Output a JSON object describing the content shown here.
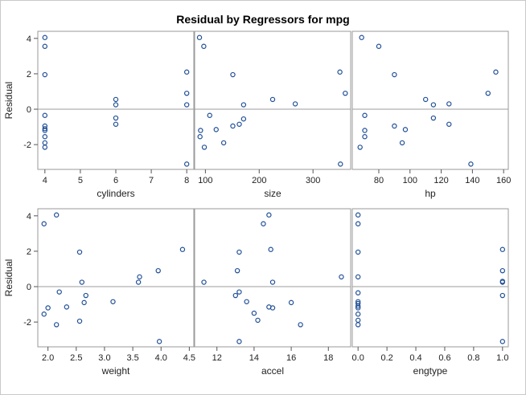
{
  "chart_data": {
    "type": "scatter",
    "title": "Residual by Regressors for mpg",
    "ylabel": "Residual",
    "y_ticks": [
      -2,
      0,
      2,
      4
    ],
    "ylim": [
      -3.4,
      4.4
    ],
    "reference_line_y": 0,
    "point_color": "#1f4e96",
    "panels": [
      {
        "xlabel": "cylinders",
        "xlim": [
          3.8,
          8.2
        ],
        "x_ticks": [
          4,
          5,
          6,
          7,
          8
        ],
        "points": [
          [
            4,
            4.05
          ],
          [
            4,
            3.55
          ],
          [
            4,
            1.95
          ],
          [
            4,
            -0.35
          ],
          [
            4,
            -0.95
          ],
          [
            4,
            -1.1
          ],
          [
            4,
            -1.2
          ],
          [
            4,
            -1.55
          ],
          [
            4,
            -1.9
          ],
          [
            4,
            -2.15
          ],
          [
            6,
            0.55
          ],
          [
            6,
            0.25
          ],
          [
            6,
            -0.5
          ],
          [
            6,
            -0.85
          ],
          [
            8,
            2.1
          ],
          [
            8,
            0.9
          ],
          [
            8,
            0.25
          ],
          [
            8,
            -3.1
          ]
        ]
      },
      {
        "xlabel": "size",
        "xlim": [
          80,
          370
        ],
        "x_ticks": [
          100,
          200,
          300
        ],
        "points": [
          [
            89,
            4.05
          ],
          [
            97,
            3.55
          ],
          [
            91,
            -1.2
          ],
          [
            90,
            -1.55
          ],
          [
            98,
            -2.15
          ],
          [
            108,
            -0.35
          ],
          [
            120,
            -1.15
          ],
          [
            134,
            -1.9
          ],
          [
            151,
            1.95
          ],
          [
            151,
            -0.95
          ],
          [
            163,
            -0.85
          ],
          [
            171,
            0.25
          ],
          [
            171,
            -0.55
          ],
          [
            225,
            0.55
          ],
          [
            267,
            0.3
          ],
          [
            350,
            2.1
          ],
          [
            360,
            0.9
          ],
          [
            351,
            -3.1
          ]
        ]
      },
      {
        "xlabel": "hp",
        "xlim": [
          63,
          163
        ],
        "x_ticks": [
          80,
          100,
          120,
          140,
          160
        ],
        "points": [
          [
            69,
            4.05
          ],
          [
            80,
            3.55
          ],
          [
            90,
            1.95
          ],
          [
            71,
            -0.35
          ],
          [
            71,
            -1.2
          ],
          [
            71,
            -1.55
          ],
          [
            68,
            -2.15
          ],
          [
            90,
            -0.95
          ],
          [
            97,
            -1.15
          ],
          [
            95,
            -1.9
          ],
          [
            110,
            0.55
          ],
          [
            115,
            0.25
          ],
          [
            115,
            -0.5
          ],
          [
            125,
            0.3
          ],
          [
            125,
            -0.85
          ],
          [
            155,
            2.1
          ],
          [
            150,
            0.9
          ],
          [
            139,
            -3.1
          ]
        ]
      },
      {
        "xlabel": "weight",
        "xlim": [
          1.82,
          4.58
        ],
        "x_ticks": [
          2.0,
          2.5,
          3.0,
          3.5,
          4.0,
          4.5
        ],
        "x_tick_labels": [
          "2.0",
          "2.5",
          "3.0",
          "3.5",
          "4.0",
          "4.5"
        ],
        "points": [
          [
            1.93,
            3.55
          ],
          [
            2.15,
            4.05
          ],
          [
            2.2,
            -0.3
          ],
          [
            1.93,
            -1.55
          ],
          [
            2.0,
            -1.2
          ],
          [
            2.15,
            -2.15
          ],
          [
            2.33,
            -1.15
          ],
          [
            2.56,
            1.95
          ],
          [
            2.56,
            -1.95
          ],
          [
            2.6,
            0.25
          ],
          [
            2.67,
            -0.5
          ],
          [
            2.64,
            -0.9
          ],
          [
            3.15,
            -0.85
          ],
          [
            3.62,
            0.55
          ],
          [
            3.6,
            0.25
          ],
          [
            3.95,
            0.9
          ],
          [
            4.38,
            2.1
          ],
          [
            3.97,
            -3.1
          ]
        ]
      },
      {
        "xlabel": "accel",
        "xlim": [
          10.8,
          19.2
        ],
        "x_ticks": [
          12,
          14,
          16,
          18
        ],
        "points": [
          [
            11.3,
            0.25
          ],
          [
            13.0,
            -0.5
          ],
          [
            13.1,
            0.9
          ],
          [
            13.2,
            1.95
          ],
          [
            13.2,
            -0.3
          ],
          [
            13.2,
            -3.1
          ],
          [
            13.6,
            -0.85
          ],
          [
            14.0,
            -1.5
          ],
          [
            14.2,
            -1.9
          ],
          [
            14.5,
            3.55
          ],
          [
            14.8,
            4.05
          ],
          [
            14.8,
            -1.15
          ],
          [
            15.0,
            -1.2
          ],
          [
            14.9,
            2.1
          ],
          [
            15.0,
            0.25
          ],
          [
            16.0,
            -0.9
          ],
          [
            16.5,
            -2.15
          ],
          [
            18.7,
            0.55
          ]
        ]
      },
      {
        "xlabel": "engtype",
        "xlim": [
          -0.04,
          1.04
        ],
        "x_ticks": [
          0.0,
          0.2,
          0.4,
          0.6,
          0.8,
          1.0
        ],
        "x_tick_labels": [
          "0.0",
          "0.2",
          "0.4",
          "0.6",
          "0.8",
          "1.0"
        ],
        "points": [
          [
            0,
            4.05
          ],
          [
            0,
            3.55
          ],
          [
            0,
            1.95
          ],
          [
            0,
            0.55
          ],
          [
            0,
            -0.35
          ],
          [
            0,
            -0.85
          ],
          [
            0,
            -0.95
          ],
          [
            0,
            -1.1
          ],
          [
            0,
            -1.2
          ],
          [
            0,
            -1.55
          ],
          [
            0,
            -1.9
          ],
          [
            0,
            -2.15
          ],
          [
            1,
            2.1
          ],
          [
            1,
            0.9
          ],
          [
            1,
            0.3
          ],
          [
            1,
            0.25
          ],
          [
            1,
            -0.5
          ],
          [
            1,
            -3.1
          ]
        ]
      }
    ]
  }
}
